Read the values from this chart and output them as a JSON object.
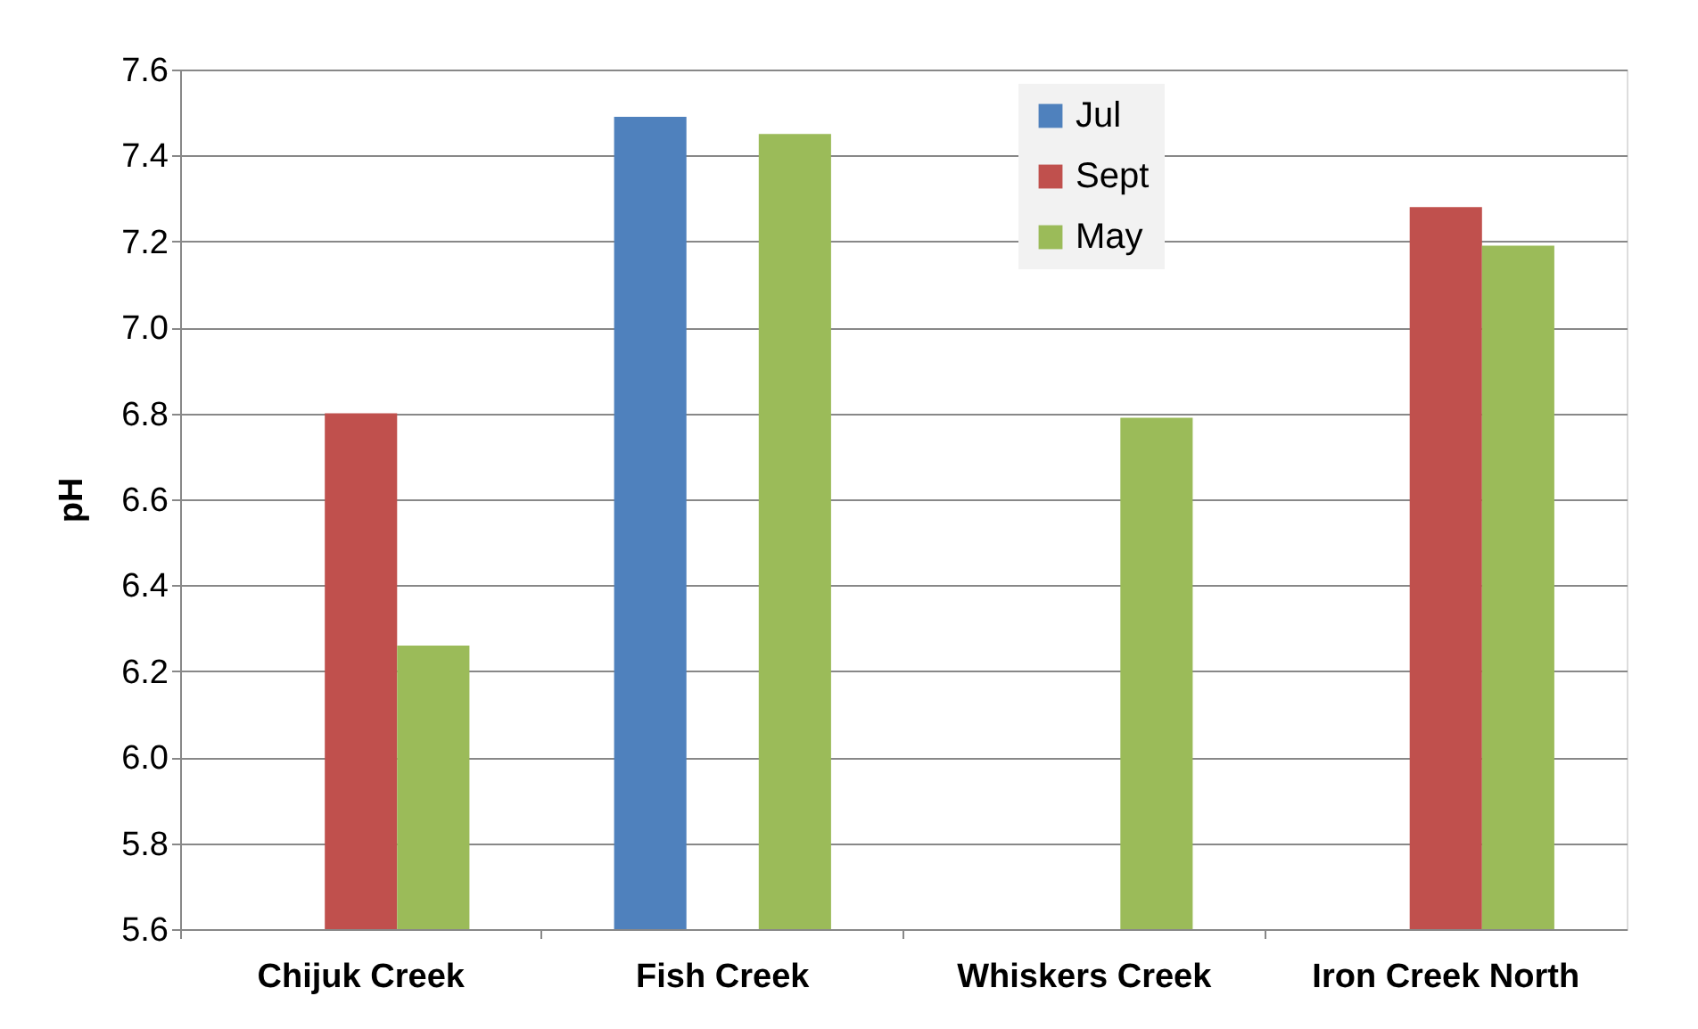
{
  "chart_data": {
    "type": "bar",
    "ylabel": "pH",
    "categories": [
      "Chijuk Creek",
      "Fish Creek",
      "Whiskers Creek",
      "Iron Creek North"
    ],
    "series": [
      {
        "name": "Jul",
        "color": "#4f81bd",
        "values": [
          null,
          7.49,
          null,
          null
        ]
      },
      {
        "name": "Sept",
        "color": "#c0504d",
        "values": [
          6.8,
          null,
          null,
          7.28
        ]
      },
      {
        "name": "May",
        "color": "#9bbb59",
        "values": [
          6.26,
          7.45,
          6.79,
          7.19
        ]
      }
    ],
    "ylim": [
      5.6,
      7.6
    ],
    "yticks": [
      5.6,
      5.8,
      {
        "value": 6,
        "label": "6.0"
      },
      6.2,
      6.4,
      6.6,
      6.8,
      {
        "value": 7,
        "label": "7.0"
      },
      7.2,
      7.4,
      7.6
    ],
    "grid": "y",
    "legend": "top right"
  }
}
